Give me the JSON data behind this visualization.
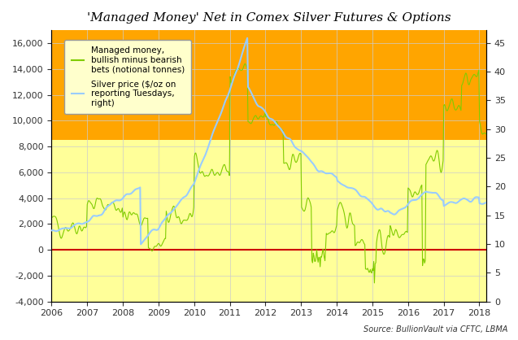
{
  "title": "'Managed Money' Net in Comex Silver Futures & Options",
  "source_text": "Source: BullionVault via CFTC, LBMA",
  "legend_line1": "Managed money,\nbullish minus bearish\nbets (notional tonnes)",
  "legend_line2": "Silver price ($/oz on\nreporting Tuesdays,\nright)",
  "left_ylim": [
    -4000,
    17000
  ],
  "left_yticks": [
    -4000,
    -2000,
    0,
    2000,
    4000,
    6000,
    8000,
    10000,
    12000,
    14000,
    16000
  ],
  "right_ylim": [
    0,
    47.2222
  ],
  "right_yticks": [
    0,
    5,
    10,
    15,
    20,
    25,
    30,
    35,
    40,
    45
  ],
  "xlim_start": 2006.0,
  "xlim_end": 2018.2,
  "xtick_years": [
    2006,
    2007,
    2008,
    2009,
    2010,
    2011,
    2012,
    2013,
    2014,
    2015,
    2016,
    2017,
    2018
  ],
  "bg_color_top": "#FFA500",
  "bg_color_bottom": "#FFFF99",
  "net_line_color": "#80CC00",
  "silver_line_color": "#99CCFF",
  "zero_line_color": "#CC0000",
  "grid_color": "#CCCCCC"
}
